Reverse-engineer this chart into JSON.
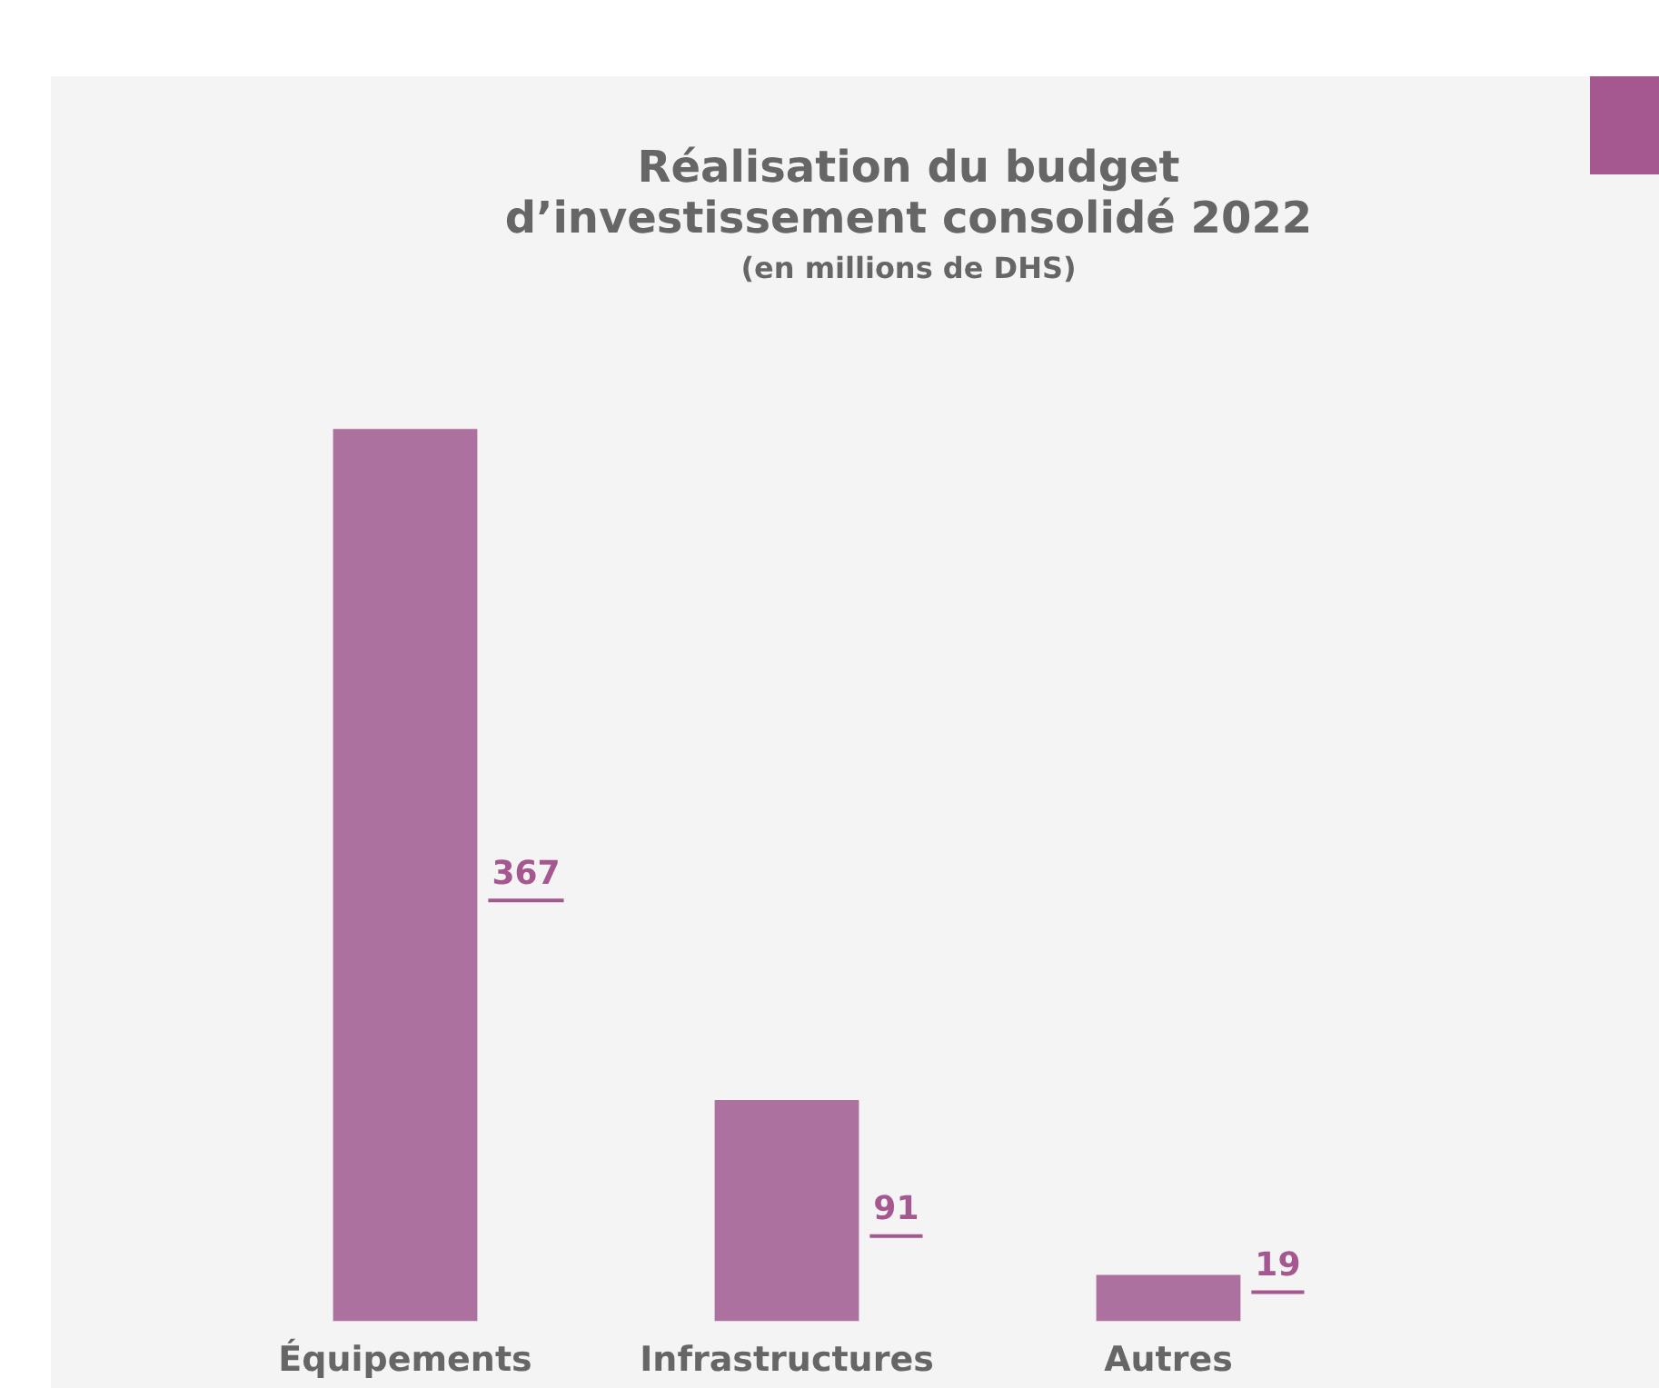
{
  "chart_data": {
    "type": "bar",
    "title": "Réalisation du budget d’investissement consolidé 2022",
    "subtitle": "(en millions de DHS)",
    "categories": [
      "Équipements",
      "Infrastructures",
      "Autres"
    ],
    "values": [
      367,
      91,
      19
    ],
    "color": "#ad719f",
    "data_labels": true,
    "grid": false,
    "legend": false
  }
}
